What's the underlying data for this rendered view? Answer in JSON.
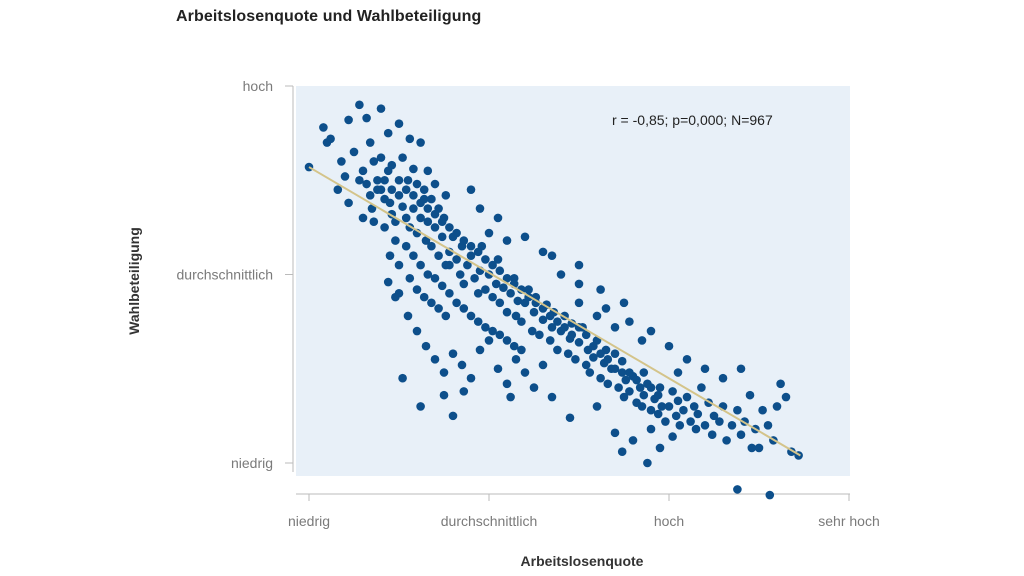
{
  "chart_data": {
    "type": "scatter",
    "title": "Arbeitslosenquote und Wahlbeteiligung",
    "xlabel": "Arbeitslosenquote",
    "ylabel": "Wahlbeteiligung",
    "annotation": "r = -0,85; p=0,000; N=967",
    "x_ticks": [
      {
        "value": 0,
        "label": "niedrig"
      },
      {
        "value": 1,
        "label": "durchschnittlich"
      },
      {
        "value": 2,
        "label": "hoch"
      },
      {
        "value": 3,
        "label": "sehr hoch"
      }
    ],
    "y_ticks": [
      {
        "value": 0,
        "label": "niedrig"
      },
      {
        "value": 1,
        "label": "durchschnittlich"
      },
      {
        "value": 2,
        "label": "hoch"
      }
    ],
    "xlim": [
      0,
      3
    ],
    "ylim": [
      0,
      2
    ],
    "grid": false,
    "plot_background": "#e8f0f8",
    "point_color": "#0d4f8b",
    "trendline_color": "#d4c48a",
    "trendline": {
      "x": [
        0.0,
        2.73
      ],
      "y": [
        1.57,
        0.04
      ]
    },
    "points": [
      [
        0.0,
        1.57
      ],
      [
        0.08,
        1.78
      ],
      [
        0.1,
        1.7
      ],
      [
        0.12,
        1.72
      ],
      [
        0.18,
        1.6
      ],
      [
        0.2,
        1.52
      ],
      [
        0.16,
        1.45
      ],
      [
        0.22,
        1.38
      ],
      [
        0.25,
        1.65
      ],
      [
        0.28,
        1.5
      ],
      [
        0.3,
        1.55
      ],
      [
        0.32,
        1.48
      ],
      [
        0.34,
        1.42
      ],
      [
        0.3,
        1.3
      ],
      [
        0.35,
        1.35
      ],
      [
        0.36,
        1.6
      ],
      [
        0.38,
        1.5
      ],
      [
        0.4,
        1.45
      ],
      [
        0.42,
        1.4
      ],
      [
        0.44,
        1.55
      ],
      [
        0.45,
        1.38
      ],
      [
        0.46,
        1.32
      ],
      [
        0.48,
        1.28
      ],
      [
        0.5,
        1.42
      ],
      [
        0.52,
        1.36
      ],
      [
        0.54,
        1.3
      ],
      [
        0.55,
        1.5
      ],
      [
        0.56,
        1.25
      ],
      [
        0.58,
        1.35
      ],
      [
        0.6,
        1.22
      ],
      [
        0.62,
        1.3
      ],
      [
        0.64,
        1.4
      ],
      [
        0.65,
        1.18
      ],
      [
        0.66,
        1.28
      ],
      [
        0.68,
        1.15
      ],
      [
        0.7,
        1.25
      ],
      [
        0.72,
        1.1
      ],
      [
        0.74,
        1.2
      ],
      [
        0.75,
        1.3
      ],
      [
        0.76,
        1.05
      ],
      [
        0.78,
        1.12
      ],
      [
        0.8,
        1.2
      ],
      [
        0.82,
        1.08
      ],
      [
        0.84,
        1.0
      ],
      [
        0.85,
        1.15
      ],
      [
        0.86,
        0.95
      ],
      [
        0.88,
        1.05
      ],
      [
        0.9,
        1.1
      ],
      [
        0.92,
        0.98
      ],
      [
        0.94,
        0.9
      ],
      [
        0.95,
        1.02
      ],
      [
        0.96,
        1.15
      ],
      [
        0.98,
        0.92
      ],
      [
        1.0,
        1.0
      ],
      [
        1.02,
        0.88
      ],
      [
        1.04,
        0.95
      ],
      [
        1.05,
        1.08
      ],
      [
        1.06,
        0.85
      ],
      [
        1.08,
        0.93
      ],
      [
        1.1,
        0.8
      ],
      [
        1.12,
        0.9
      ],
      [
        1.14,
        0.98
      ],
      [
        1.15,
        0.78
      ],
      [
        1.16,
        0.86
      ],
      [
        1.18,
        0.75
      ],
      [
        1.2,
        0.85
      ],
      [
        1.22,
        0.92
      ],
      [
        1.24,
        0.7
      ],
      [
        1.25,
        0.8
      ],
      [
        1.26,
        0.88
      ],
      [
        1.28,
        0.68
      ],
      [
        1.3,
        0.76
      ],
      [
        1.32,
        0.84
      ],
      [
        1.34,
        0.65
      ],
      [
        1.35,
        0.72
      ],
      [
        1.36,
        0.8
      ],
      [
        1.38,
        0.6
      ],
      [
        1.4,
        0.7
      ],
      [
        1.42,
        0.78
      ],
      [
        1.44,
        0.58
      ],
      [
        1.45,
        0.66
      ],
      [
        1.46,
        0.74
      ],
      [
        1.48,
        0.55
      ],
      [
        1.5,
        0.64
      ],
      [
        1.52,
        0.72
      ],
      [
        1.54,
        0.52
      ],
      [
        1.55,
        0.6
      ],
      [
        1.56,
        0.48
      ],
      [
        1.58,
        0.56
      ],
      [
        1.6,
        0.65
      ],
      [
        1.62,
        0.45
      ],
      [
        1.64,
        0.53
      ],
      [
        1.65,
        0.6
      ],
      [
        1.66,
        0.42
      ],
      [
        1.68,
        0.5
      ],
      [
        1.7,
        0.58
      ],
      [
        1.72,
        0.4
      ],
      [
        1.74,
        0.48
      ],
      [
        1.75,
        0.35
      ],
      [
        1.76,
        0.44
      ],
      [
        1.78,
        0.38
      ],
      [
        1.8,
        0.46
      ],
      [
        1.82,
        0.32
      ],
      [
        1.84,
        0.4
      ],
      [
        1.85,
        0.3
      ],
      [
        1.86,
        0.36
      ],
      [
        1.88,
        0.42
      ],
      [
        1.9,
        0.28
      ],
      [
        1.92,
        0.34
      ],
      [
        1.94,
        0.26
      ],
      [
        1.95,
        0.4
      ],
      [
        1.96,
        0.3
      ],
      [
        1.98,
        0.22
      ],
      [
        2.0,
        0.3
      ],
      [
        2.02,
        0.38
      ],
      [
        2.04,
        0.25
      ],
      [
        2.05,
        0.33
      ],
      [
        2.06,
        0.2
      ],
      [
        2.08,
        0.28
      ],
      [
        2.1,
        0.35
      ],
      [
        2.12,
        0.22
      ],
      [
        2.14,
        0.3
      ],
      [
        2.15,
        0.18
      ],
      [
        2.16,
        0.26
      ],
      [
        2.18,
        0.4
      ],
      [
        2.2,
        0.2
      ],
      [
        2.22,
        0.32
      ],
      [
        2.24,
        0.15
      ],
      [
        2.25,
        0.25
      ],
      [
        2.28,
        0.22
      ],
      [
        2.3,
        0.3
      ],
      [
        2.32,
        0.12
      ],
      [
        2.35,
        0.2
      ],
      [
        2.38,
        0.28
      ],
      [
        2.4,
        0.15
      ],
      [
        2.42,
        0.22
      ],
      [
        2.45,
        0.36
      ],
      [
        2.48,
        0.18
      ],
      [
        2.5,
        0.08
      ],
      [
        2.52,
        0.28
      ],
      [
        2.55,
        0.2
      ],
      [
        2.58,
        0.12
      ],
      [
        2.6,
        0.3
      ],
      [
        2.62,
        0.42
      ],
      [
        2.65,
        0.35
      ],
      [
        2.68,
        0.06
      ],
      [
        2.72,
        0.04
      ],
      [
        2.56,
        -0.17
      ],
      [
        2.38,
        -0.14
      ],
      [
        2.46,
        0.08
      ],
      [
        0.22,
        1.82
      ],
      [
        0.28,
        1.9
      ],
      [
        0.32,
        1.83
      ],
      [
        0.4,
        1.88
      ],
      [
        0.44,
        1.75
      ],
      [
        0.5,
        1.8
      ],
      [
        0.56,
        1.72
      ],
      [
        0.62,
        1.7
      ],
      [
        0.66,
        1.55
      ],
      [
        0.7,
        1.48
      ],
      [
        0.78,
        1.05
      ],
      [
        0.5,
        0.9
      ],
      [
        0.55,
        0.78
      ],
      [
        0.6,
        0.7
      ],
      [
        0.65,
        0.62
      ],
      [
        0.7,
        0.55
      ],
      [
        0.75,
        0.48
      ],
      [
        0.52,
        0.45
      ],
      [
        0.8,
        0.58
      ],
      [
        0.85,
        0.52
      ],
      [
        0.9,
        0.45
      ],
      [
        0.95,
        0.6
      ],
      [
        1.0,
        0.65
      ],
      [
        1.05,
        0.5
      ],
      [
        1.1,
        0.42
      ],
      [
        1.15,
        0.55
      ],
      [
        1.2,
        0.48
      ],
      [
        1.25,
        0.4
      ],
      [
        1.3,
        0.52
      ],
      [
        1.35,
        0.35
      ],
      [
        0.62,
        0.3
      ],
      [
        0.75,
        0.36
      ],
      [
        0.86,
        0.38
      ],
      [
        0.8,
        0.25
      ],
      [
        1.12,
        0.35
      ],
      [
        1.45,
        0.24
      ],
      [
        1.6,
        0.3
      ],
      [
        1.7,
        0.16
      ],
      [
        1.8,
        0.12
      ],
      [
        1.9,
        0.18
      ],
      [
        1.95,
        0.08
      ],
      [
        2.02,
        0.14
      ],
      [
        1.74,
        0.06
      ],
      [
        1.88,
        0.0
      ],
      [
        1.5,
        0.85
      ],
      [
        1.6,
        0.78
      ],
      [
        1.7,
        0.72
      ],
      [
        1.75,
        0.85
      ],
      [
        1.62,
        0.92
      ],
      [
        1.5,
        0.95
      ],
      [
        1.35,
        1.1
      ],
      [
        1.2,
        1.2
      ],
      [
        1.05,
        1.3
      ],
      [
        0.95,
        1.35
      ],
      [
        0.9,
        1.45
      ],
      [
        1.0,
        1.22
      ],
      [
        1.4,
        1.0
      ],
      [
        1.5,
        1.05
      ],
      [
        1.3,
        1.12
      ],
      [
        1.1,
        1.18
      ],
      [
        2.1,
        0.55
      ],
      [
        2.0,
        0.62
      ],
      [
        2.2,
        0.5
      ],
      [
        1.9,
        0.7
      ],
      [
        2.3,
        0.45
      ],
      [
        2.4,
        0.5
      ],
      [
        2.05,
        0.48
      ],
      [
        1.85,
        0.65
      ],
      [
        1.78,
        0.75
      ],
      [
        1.65,
        0.82
      ],
      [
        0.34,
        1.7
      ],
      [
        0.4,
        1.62
      ],
      [
        0.46,
        1.58
      ],
      [
        0.52,
        1.62
      ],
      [
        0.58,
        1.56
      ],
      [
        0.6,
        1.48
      ],
      [
        0.64,
        1.45
      ],
      [
        0.68,
        1.4
      ],
      [
        0.72,
        1.35
      ],
      [
        0.76,
        1.42
      ],
      [
        0.36,
        1.28
      ],
      [
        0.42,
        1.25
      ],
      [
        0.48,
        1.18
      ],
      [
        0.54,
        1.15
      ],
      [
        0.58,
        1.1
      ],
      [
        0.62,
        1.05
      ],
      [
        0.66,
        1.0
      ],
      [
        0.7,
        0.98
      ],
      [
        0.74,
        0.94
      ],
      [
        0.78,
        0.9
      ],
      [
        0.82,
        0.85
      ],
      [
        0.86,
        0.82
      ],
      [
        0.9,
        0.78
      ],
      [
        0.94,
        0.75
      ],
      [
        0.98,
        0.72
      ],
      [
        1.02,
        0.7
      ],
      [
        1.06,
        0.68
      ],
      [
        1.1,
        0.65
      ],
      [
        1.14,
        0.62
      ],
      [
        1.18,
        0.6
      ],
      [
        0.45,
        1.1
      ],
      [
        0.5,
        1.05
      ],
      [
        0.56,
        0.98
      ],
      [
        0.6,
        0.92
      ],
      [
        0.64,
        0.88
      ],
      [
        0.68,
        0.85
      ],
      [
        0.72,
        0.82
      ],
      [
        0.76,
        0.78
      ],
      [
        0.44,
        0.96
      ],
      [
        0.48,
        0.88
      ],
      [
        0.38,
        1.45
      ],
      [
        0.42,
        1.5
      ],
      [
        0.46,
        1.45
      ],
      [
        0.5,
        1.5
      ],
      [
        0.54,
        1.45
      ],
      [
        0.58,
        1.42
      ],
      [
        0.62,
        1.38
      ],
      [
        0.66,
        1.35
      ],
      [
        0.7,
        1.32
      ],
      [
        0.74,
        1.28
      ],
      [
        0.78,
        1.25
      ],
      [
        0.82,
        1.22
      ],
      [
        0.86,
        1.18
      ],
      [
        0.9,
        1.15
      ],
      [
        0.94,
        1.12
      ],
      [
        0.98,
        1.08
      ],
      [
        1.02,
        1.05
      ],
      [
        1.06,
        1.02
      ],
      [
        1.1,
        0.98
      ],
      [
        1.14,
        0.95
      ],
      [
        1.18,
        0.92
      ],
      [
        1.22,
        0.88
      ],
      [
        1.26,
        0.85
      ],
      [
        1.3,
        0.82
      ],
      [
        1.34,
        0.78
      ],
      [
        1.38,
        0.75
      ],
      [
        1.42,
        0.72
      ],
      [
        1.46,
        0.68
      ],
      [
        1.5,
        0.72
      ],
      [
        1.54,
        0.68
      ],
      [
        1.58,
        0.62
      ],
      [
        1.62,
        0.58
      ],
      [
        1.66,
        0.55
      ],
      [
        1.7,
        0.5
      ],
      [
        1.74,
        0.54
      ],
      [
        1.78,
        0.48
      ],
      [
        1.82,
        0.44
      ],
      [
        1.86,
        0.48
      ],
      [
        1.9,
        0.4
      ],
      [
        1.94,
        0.36
      ]
    ]
  }
}
